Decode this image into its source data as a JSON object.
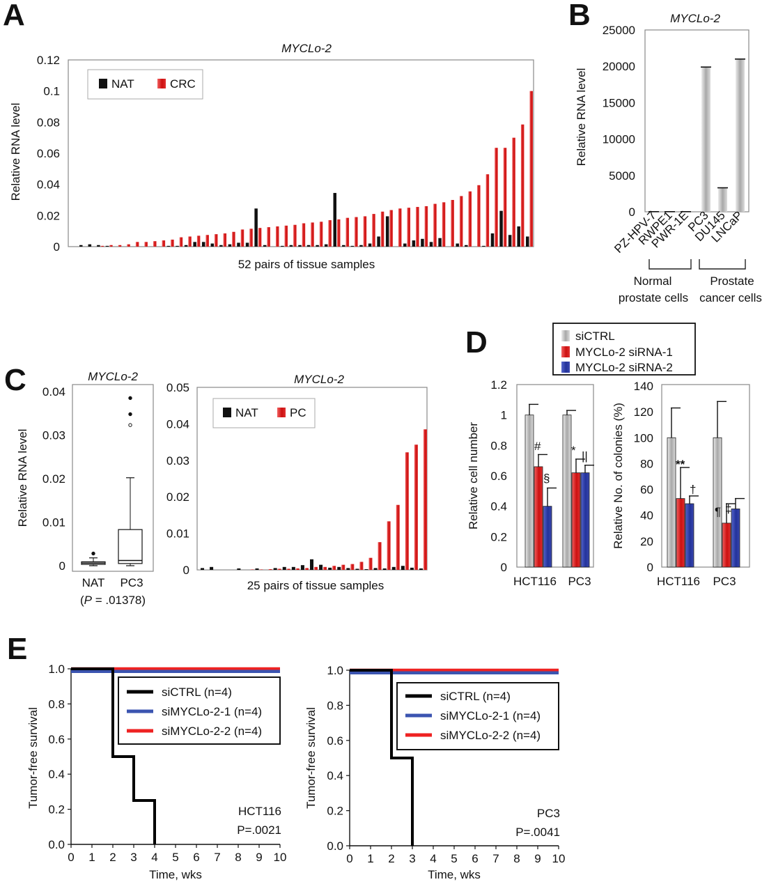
{
  "panels": {
    "A": {
      "letter": "A"
    },
    "B": {
      "letter": "B"
    },
    "C": {
      "letter": "C"
    },
    "D": {
      "letter": "D"
    },
    "E": {
      "letter": "E"
    }
  },
  "colors": {
    "NAT": "#111111",
    "tumor": "#dd2020",
    "siCTRL": "#b8b8b8",
    "siRNA1": "#dd2020",
    "siRNA2": "#3344aa",
    "km_ctrl": "#000000",
    "km_1": "#3b54b0",
    "km_2": "#ee2222"
  },
  "chart_data": [
    {
      "id": "A",
      "type": "bar",
      "title": "MYCLo-2",
      "xlabel": "52 pairs of tissue samples",
      "ylabel": "Relative RNA level",
      "ylim": [
        0,
        0.12
      ],
      "yticks": [
        "0",
        "0.02",
        "0.04",
        "0.06",
        "0.08",
        "0.1",
        "0.12"
      ],
      "legend_position": "top-left",
      "series": [
        {
          "name": "NAT",
          "values": [
            0.001,
            0.0015,
            0.001,
            0.0005,
            0,
            0,
            0,
            0,
            0,
            0,
            0.0005,
            0.0005,
            0.001,
            0.003,
            0.003,
            0.002,
            0.001,
            0.0015,
            0.0025,
            0.0025,
            0.0245,
            0.001,
            0,
            0.0005,
            0.001,
            0.001,
            0.001,
            0.001,
            0.0015,
            0.0345,
            0.001,
            0.0005,
            0.001,
            0.002,
            0.0065,
            0.0195,
            0,
            0.002,
            0.004,
            0.005,
            0.003,
            0.0055,
            0,
            0.002,
            0.001,
            0,
            0.0005,
            0.0085,
            0.023,
            0.0075,
            0.013,
            0.0065
          ]
        },
        {
          "name": "CRC",
          "values": [
            0,
            0,
            0.0005,
            0.001,
            0.001,
            0.0015,
            0.003,
            0.003,
            0.0035,
            0.004,
            0.0045,
            0.006,
            0.0065,
            0.007,
            0.0075,
            0.008,
            0.0085,
            0.0095,
            0.011,
            0.0115,
            0.012,
            0.0125,
            0.013,
            0.0135,
            0.014,
            0.015,
            0.0155,
            0.016,
            0.017,
            0.0175,
            0.0185,
            0.019,
            0.0195,
            0.021,
            0.0225,
            0.0235,
            0.0245,
            0.025,
            0.0255,
            0.026,
            0.0275,
            0.0285,
            0.03,
            0.0325,
            0.0355,
            0.0395,
            0.0465,
            0.0635,
            0.0635,
            0.07,
            0.0785,
            0.1
          ]
        }
      ]
    },
    {
      "id": "B",
      "type": "bar",
      "title": "MYCLo-2",
      "ylabel": "Relative RNA level",
      "ylim": [
        0,
        25000
      ],
      "yticks": [
        "0",
        "5000",
        "10000",
        "15000",
        "20000",
        "25000"
      ],
      "categories": [
        "PZ-HPV-7",
        "RWPE1",
        "PWR-1E",
        "PC3",
        "DU145",
        "LNCaP"
      ],
      "values": [
        20,
        20,
        20,
        19900,
        3300,
        21000
      ],
      "groups": [
        {
          "label_line1": "Normal",
          "label_line2": "prostate cells",
          "members": [
            "PZ-HPV-7",
            "RWPE1",
            "PWR-1E"
          ]
        },
        {
          "label_line1": "Prostate",
          "label_line2": "cancer cells",
          "members": [
            "PC3",
            "DU145",
            "LNCaP"
          ]
        }
      ]
    },
    {
      "id": "C-box",
      "type": "box",
      "title": "MYCLo-2",
      "ylabel": "Relative RNA level",
      "ylim": [
        0,
        0.04
      ],
      "yticks": [
        "0",
        "0.01",
        "0.02",
        "0.03",
        "0.04"
      ],
      "categories": [
        "NAT",
        "PC3"
      ],
      "note_prefix": "(",
      "note_p": "P",
      "note_value": " = .01378)",
      "boxes": [
        {
          "name": "NAT",
          "whisker_low": 0,
          "q1": 0.0003,
          "median": 0.0006,
          "q3": 0.0009,
          "whisker_high": 0.0018,
          "outliers": [
            0.0028
          ]
        },
        {
          "name": "PC3",
          "whisker_low": 0,
          "q1": 0.0005,
          "median": 0.0012,
          "q3": 0.0083,
          "whisker_high": 0.0202,
          "outliers": [
            0.0323,
            0.0348,
            0.0385
          ]
        }
      ]
    },
    {
      "id": "C-bar",
      "type": "bar",
      "title": "MYCLo-2",
      "xlabel": "25 pairs of tissue samples",
      "ylim": [
        0,
        0.05
      ],
      "yticks": [
        "0",
        "0.01",
        "0.02",
        "0.03",
        "0.04",
        "0.05"
      ],
      "legend_position": "top-left",
      "series": [
        {
          "name": "NAT",
          "values": [
            0.0005,
            0.0008,
            0,
            0,
            0.0004,
            0,
            0.0004,
            0,
            0.0005,
            0.0008,
            0.0008,
            0.0013,
            0.0029,
            0.0014,
            0.0006,
            0.0008,
            0.0005,
            0.0003,
            0.0002,
            0.0005,
            0.0004,
            0.0008,
            0.0011,
            0.0006,
            0.0004
          ]
        },
        {
          "name": "PC",
          "values": [
            0,
            0,
            0,
            0,
            0,
            0.0001,
            0.0001,
            0.0002,
            0.0003,
            0.0003,
            0.0004,
            0.0005,
            0.0008,
            0.0008,
            0.0011,
            0.0014,
            0.0016,
            0.0022,
            0.0033,
            0.0076,
            0.0133,
            0.0178,
            0.0322,
            0.0343,
            0.0385
          ]
        }
      ]
    },
    {
      "id": "D-left",
      "type": "bar",
      "ylabel": "Relative cell number",
      "ylim": [
        0,
        1.2
      ],
      "yticks": [
        "0",
        "0.2",
        "0.4",
        "0.6",
        "0.8",
        "1",
        "1.2"
      ],
      "categories": [
        "HCT116",
        "PC3"
      ],
      "series": [
        {
          "name": "siCTRL",
          "values": [
            1.0,
            1.0
          ],
          "errors": [
            0.07,
            0.03
          ]
        },
        {
          "name": "MYCLo-2 siRNA-1",
          "values": [
            0.66,
            0.62
          ],
          "errors": [
            0.08,
            0.09
          ]
        },
        {
          "name": "MYCLo-2 siRNA-2",
          "values": [
            0.4,
            0.62
          ],
          "errors": [
            0.12,
            0.05
          ]
        }
      ],
      "annotations": [
        "#",
        "§",
        "*",
        "||"
      ]
    },
    {
      "id": "D-right",
      "type": "bar",
      "ylabel": "Relative No. of colonies (%)",
      "ylim": [
        0,
        140
      ],
      "yticks": [
        "0",
        "20",
        "40",
        "60",
        "80",
        "100",
        "120",
        "140"
      ],
      "categories": [
        "HCT116",
        "PC3"
      ],
      "series": [
        {
          "name": "siCTRL",
          "values": [
            100,
            100
          ],
          "errors": [
            23,
            28
          ]
        },
        {
          "name": "MYCLo-2 siRNA-1",
          "values": [
            53,
            34
          ],
          "errors": [
            24,
            15
          ]
        },
        {
          "name": "MYCLo-2 siRNA-2",
          "values": [
            49,
            45
          ],
          "errors": [
            6,
            8
          ]
        }
      ],
      "annotations": [
        "**",
        "†",
        "¶",
        "‡"
      ]
    },
    {
      "id": "E-left",
      "type": "line",
      "xlabel": "Time, wks",
      "ylabel": "Tumor-free survival",
      "xlim": [
        0,
        10
      ],
      "ylim": [
        0,
        1
      ],
      "xticks": [
        "0",
        "1",
        "2",
        "3",
        "4",
        "5",
        "6",
        "7",
        "8",
        "9",
        "10"
      ],
      "yticks": [
        "0.0",
        "0.2",
        "0.4",
        "0.6",
        "0.8",
        "1.0"
      ],
      "cell_line": "HCT116",
      "p_value": "P=.0021",
      "series": [
        {
          "name": "siCTRL (n=4)",
          "x": [
            0,
            2,
            2,
            3,
            3,
            4,
            4
          ],
          "y": [
            1,
            1,
            0.5,
            0.5,
            0.25,
            0.25,
            0
          ]
        },
        {
          "name": "siMYCLo-2-1 (n=4)",
          "x": [
            0,
            10
          ],
          "y": [
            0.985,
            0.985
          ]
        },
        {
          "name": "siMYCLo-2-2 (n=4)",
          "x": [
            0,
            10
          ],
          "y": [
            1,
            1
          ]
        }
      ]
    },
    {
      "id": "E-right",
      "type": "line",
      "xlabel": "Time, wks",
      "ylabel": "Tumor-free survival",
      "xlim": [
        0,
        10
      ],
      "ylim": [
        0,
        1
      ],
      "xticks": [
        "0",
        "1",
        "2",
        "3",
        "4",
        "5",
        "6",
        "7",
        "8",
        "9",
        "10"
      ],
      "yticks": [
        "0.0",
        "0.2",
        "0.4",
        "0.6",
        "0.8",
        "1.0"
      ],
      "cell_line": "PC3",
      "p_value": "P=.0041",
      "series": [
        {
          "name": "siCTRL (n=4)",
          "x": [
            0,
            2,
            2,
            3,
            3
          ],
          "y": [
            1,
            1,
            0.5,
            0.5,
            0
          ]
        },
        {
          "name": "siMYCLo-2-1 (n=4)",
          "x": [
            0,
            10
          ],
          "y": [
            0.985,
            0.985
          ]
        },
        {
          "name": "siMYCLo-2-2 (n=4)",
          "x": [
            0,
            10
          ],
          "y": [
            1,
            1
          ]
        }
      ]
    }
  ]
}
